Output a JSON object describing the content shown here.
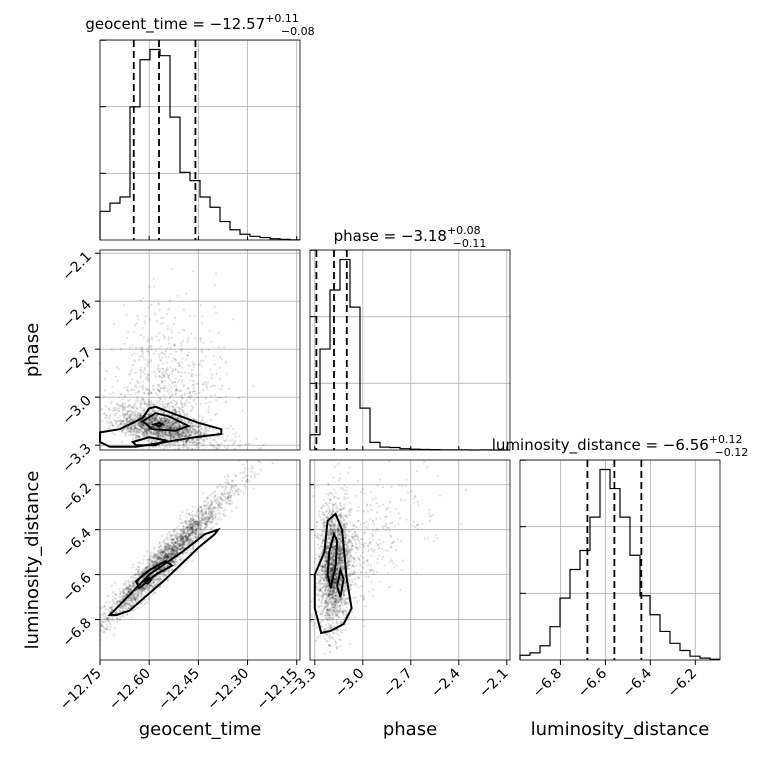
{
  "chart_data": {
    "type": "corner",
    "parameters": [
      "geocent_time",
      "phase",
      "luminosity_distance"
    ],
    "titles": [
      {
        "text": "geocent_time = −12.57",
        "plus": "+0.11",
        "minus": "−0.08"
      },
      {
        "text": "phase = −3.18",
        "plus": "+0.08",
        "minus": "−0.11"
      },
      {
        "text": "luminosity_distance = −6.56",
        "plus": "+0.12",
        "minus": "−0.12"
      }
    ],
    "axes": {
      "geocent_time": {
        "range": [
          -12.75,
          -12.14
        ],
        "ticks": [
          -12.75,
          -12.6,
          -12.45,
          -12.3,
          -12.15
        ],
        "tick_labels": [
          "−12.75",
          "−12.60",
          "−12.45",
          "−12.30",
          "−12.15"
        ]
      },
      "phase": {
        "range": [
          -3.33,
          -2.08
        ],
        "ticks": [
          -3.3,
          -3.0,
          -2.7,
          -2.4,
          -2.1
        ],
        "tick_labels": [
          "−3.3",
          "−3.0",
          "−2.7",
          "−2.4",
          "−2.1"
        ]
      },
      "luminosity_distance": {
        "range": [
          -6.98,
          -6.09
        ],
        "ticks": [
          -6.8,
          -6.6,
          -6.4,
          -6.2
        ],
        "tick_labels": [
          "−6.8",
          "−6.6",
          "−6.4",
          "−6.2"
        ]
      }
    },
    "histograms": {
      "geocent_time": {
        "edges_range": [
          -12.75,
          -12.14
        ],
        "counts": [
          14,
          18,
          21,
          65,
          88,
          93,
          90,
          60,
          33,
          29,
          21,
          16,
          9,
          5,
          2.8,
          1.8,
          1.2,
          0.6,
          0.3,
          0.1
        ],
        "quantiles": [
          -12.647,
          -12.57,
          -12.459
        ]
      },
      "phase": {
        "edges_range": [
          -3.33,
          -2.08
        ],
        "counts": [
          8,
          53,
          84,
          100,
          75,
          22,
          4,
          1.5,
          1.3,
          0.7,
          0.4,
          0.3,
          0.2,
          0.1,
          0.1,
          0.05,
          0,
          0.05,
          0,
          0
        ],
        "quantiles": [
          -3.29,
          -3.18,
          -3.1
        ]
      },
      "luminosity_distance": {
        "edges_range": [
          -6.98,
          -6.09
        ],
        "counts": [
          2,
          3,
          6,
          14,
          26,
          38,
          46,
          60,
          80,
          72,
          60,
          44,
          27,
          19,
          12,
          7,
          4,
          1.6,
          0.8,
          0.3
        ],
        "quantiles": [
          -6.68,
          -6.56,
          -6.44
        ]
      }
    },
    "levels": [
      "39.3%",
      "86.5%"
    ],
    "pairs": [
      {
        "x": "geocent_time",
        "y": "phase",
        "sample_count": 2600
      },
      {
        "x": "geocent_time",
        "y": "luminosity_distance",
        "sample_count": 2600
      },
      {
        "x": "phase",
        "y": "luminosity_distance",
        "sample_count": 2600
      }
    ],
    "grid": true,
    "grid_color": "#b0b0b0",
    "sample_color": "#000000",
    "contour_fill_color": "#808080",
    "density_peak_color": "#222222"
  }
}
